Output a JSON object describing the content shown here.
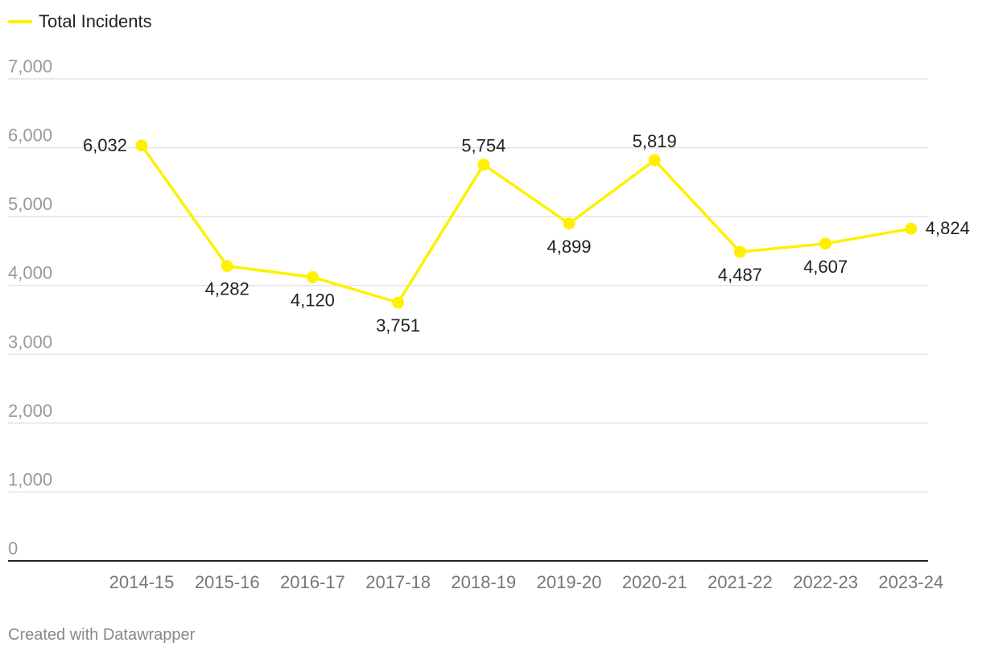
{
  "chart_data": {
    "type": "line",
    "categories": [
      "2014-15",
      "2015-16",
      "2016-17",
      "2017-18",
      "2018-19",
      "2019-20",
      "2020-21",
      "2021-22",
      "2022-23",
      "2023-24"
    ],
    "series": [
      {
        "name": "Total Incidents",
        "values": [
          6032,
          4282,
          4120,
          3751,
          5754,
          4899,
          5819,
          4487,
          4607,
          4824
        ],
        "value_labels": [
          "6,032",
          "4,282",
          "4,120",
          "3,751",
          "5,754",
          "4,899",
          "5,819",
          "4,487",
          "4,607",
          "4,824"
        ],
        "color": "#fff000"
      }
    ],
    "ylim": [
      0,
      7000
    ],
    "yticks": [
      0,
      1000,
      2000,
      3000,
      4000,
      5000,
      6000,
      7000
    ],
    "ytick_labels": [
      "0",
      "1,000",
      "2,000",
      "3,000",
      "4,000",
      "5,000",
      "6,000",
      "7,000"
    ],
    "grid": true,
    "legend": "top-left",
    "title": "",
    "xlabel": "",
    "ylabel": ""
  },
  "footer": {
    "credit": "Created with Datawrapper"
  },
  "colors": {
    "line": "#fff000",
    "grid": "#e4e4e4",
    "axis": "#222222",
    "tick_text": "#999999",
    "value_text": "#222222",
    "credit_text": "#888888"
  }
}
